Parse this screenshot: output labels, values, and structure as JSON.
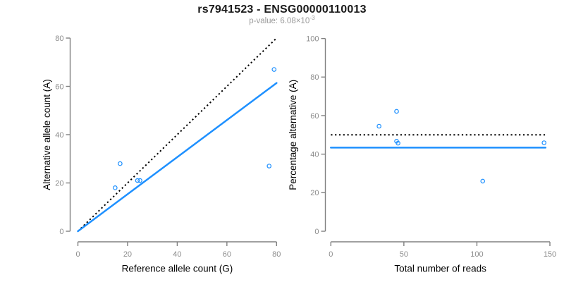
{
  "header": {
    "title": "rs7941523 - ENSG00000110013",
    "pvalue_label": "p-value: 6.08×10",
    "pvalue_exponent": "-3"
  },
  "colors": {
    "accent_blue": "#1E90FF",
    "axis_line": "#808080",
    "tick_label": "#8C8C8C",
    "axis_title": "#000000",
    "subtitle": "#9a9a9a",
    "title": "#1a1a1a"
  },
  "chart_data": [
    {
      "id": "allele-counts",
      "type": "scatter",
      "title": "",
      "xlabel": "Reference allele count (G)",
      "ylabel": "Alternative allele count (A)",
      "xlim": [
        0,
        80
      ],
      "ylim": [
        0,
        80
      ],
      "xticks": [
        0,
        20,
        40,
        60,
        80
      ],
      "yticks": [
        0,
        20,
        40,
        60,
        80
      ],
      "grid": false,
      "legend": false,
      "points": [
        [
          15,
          18
        ],
        [
          17,
          28
        ],
        [
          24,
          21
        ],
        [
          25,
          21
        ],
        [
          77,
          27
        ],
        [
          79,
          67
        ]
      ],
      "lines": [
        {
          "name": "identity-line",
          "style": "dotted",
          "color": "#000000",
          "x": [
            0,
            80
          ],
          "y": [
            0,
            80
          ]
        },
        {
          "name": "overall-ratio-line",
          "style": "solid",
          "color": "#1E90FF",
          "x": [
            0,
            80
          ],
          "y": [
            0,
            61.4
          ]
        }
      ]
    },
    {
      "id": "percentage-by-coverage",
      "type": "scatter",
      "title": "",
      "xlabel": "Total number of reads",
      "ylabel": "Percentage alternative (A)",
      "xlim": [
        0,
        150
      ],
      "ylim": [
        0,
        100
      ],
      "xticks": [
        0,
        50,
        100,
        150
      ],
      "yticks": [
        0,
        20,
        40,
        60,
        80,
        100
      ],
      "grid": false,
      "legend": false,
      "points": [
        [
          33,
          54.5
        ],
        [
          45,
          62.2
        ],
        [
          45,
          46.7
        ],
        [
          46,
          45.7
        ],
        [
          104,
          26
        ],
        [
          146,
          45.9
        ]
      ],
      "lines": [
        {
          "name": "expected-50pct-line",
          "style": "dotted",
          "color": "#000000",
          "x": [
            0,
            147
          ],
          "y": [
            50,
            50
          ]
        },
        {
          "name": "observed-mean-line",
          "style": "solid",
          "color": "#1E90FF",
          "x": [
            0,
            147
          ],
          "y": [
            43.4,
            43.4
          ]
        }
      ]
    }
  ]
}
